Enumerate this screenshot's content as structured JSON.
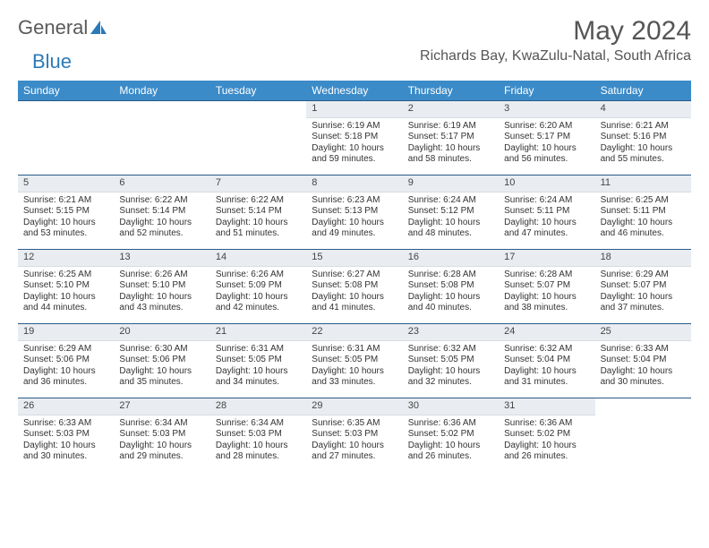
{
  "logo": {
    "text1": "General",
    "text2": "Blue"
  },
  "title": "May 2024",
  "location": "Richards Bay, KwaZulu-Natal, South Africa",
  "colors": {
    "header_bg": "#3b8bc9",
    "header_text": "#ffffff",
    "week_border": "#2a5a8a",
    "daynum_bg": "#e9edf1",
    "text": "#333333",
    "logo_gray": "#5a5a5a",
    "logo_blue": "#2a7ab9"
  },
  "day_names": [
    "Sunday",
    "Monday",
    "Tuesday",
    "Wednesday",
    "Thursday",
    "Friday",
    "Saturday"
  ],
  "weeks": [
    [
      {
        "n": "",
        "empty": true
      },
      {
        "n": "",
        "empty": true
      },
      {
        "n": "",
        "empty": true
      },
      {
        "n": "1",
        "sr": "6:19 AM",
        "ss": "5:18 PM",
        "dl": "10 hours and 59 minutes."
      },
      {
        "n": "2",
        "sr": "6:19 AM",
        "ss": "5:17 PM",
        "dl": "10 hours and 58 minutes."
      },
      {
        "n": "3",
        "sr": "6:20 AM",
        "ss": "5:17 PM",
        "dl": "10 hours and 56 minutes."
      },
      {
        "n": "4",
        "sr": "6:21 AM",
        "ss": "5:16 PM",
        "dl": "10 hours and 55 minutes."
      }
    ],
    [
      {
        "n": "5",
        "sr": "6:21 AM",
        "ss": "5:15 PM",
        "dl": "10 hours and 53 minutes."
      },
      {
        "n": "6",
        "sr": "6:22 AM",
        "ss": "5:14 PM",
        "dl": "10 hours and 52 minutes."
      },
      {
        "n": "7",
        "sr": "6:22 AM",
        "ss": "5:14 PM",
        "dl": "10 hours and 51 minutes."
      },
      {
        "n": "8",
        "sr": "6:23 AM",
        "ss": "5:13 PM",
        "dl": "10 hours and 49 minutes."
      },
      {
        "n": "9",
        "sr": "6:24 AM",
        "ss": "5:12 PM",
        "dl": "10 hours and 48 minutes."
      },
      {
        "n": "10",
        "sr": "6:24 AM",
        "ss": "5:11 PM",
        "dl": "10 hours and 47 minutes."
      },
      {
        "n": "11",
        "sr": "6:25 AM",
        "ss": "5:11 PM",
        "dl": "10 hours and 46 minutes."
      }
    ],
    [
      {
        "n": "12",
        "sr": "6:25 AM",
        "ss": "5:10 PM",
        "dl": "10 hours and 44 minutes."
      },
      {
        "n": "13",
        "sr": "6:26 AM",
        "ss": "5:10 PM",
        "dl": "10 hours and 43 minutes."
      },
      {
        "n": "14",
        "sr": "6:26 AM",
        "ss": "5:09 PM",
        "dl": "10 hours and 42 minutes."
      },
      {
        "n": "15",
        "sr": "6:27 AM",
        "ss": "5:08 PM",
        "dl": "10 hours and 41 minutes."
      },
      {
        "n": "16",
        "sr": "6:28 AM",
        "ss": "5:08 PM",
        "dl": "10 hours and 40 minutes."
      },
      {
        "n": "17",
        "sr": "6:28 AM",
        "ss": "5:07 PM",
        "dl": "10 hours and 38 minutes."
      },
      {
        "n": "18",
        "sr": "6:29 AM",
        "ss": "5:07 PM",
        "dl": "10 hours and 37 minutes."
      }
    ],
    [
      {
        "n": "19",
        "sr": "6:29 AM",
        "ss": "5:06 PM",
        "dl": "10 hours and 36 minutes."
      },
      {
        "n": "20",
        "sr": "6:30 AM",
        "ss": "5:06 PM",
        "dl": "10 hours and 35 minutes."
      },
      {
        "n": "21",
        "sr": "6:31 AM",
        "ss": "5:05 PM",
        "dl": "10 hours and 34 minutes."
      },
      {
        "n": "22",
        "sr": "6:31 AM",
        "ss": "5:05 PM",
        "dl": "10 hours and 33 minutes."
      },
      {
        "n": "23",
        "sr": "6:32 AM",
        "ss": "5:05 PM",
        "dl": "10 hours and 32 minutes."
      },
      {
        "n": "24",
        "sr": "6:32 AM",
        "ss": "5:04 PM",
        "dl": "10 hours and 31 minutes."
      },
      {
        "n": "25",
        "sr": "6:33 AM",
        "ss": "5:04 PM",
        "dl": "10 hours and 30 minutes."
      }
    ],
    [
      {
        "n": "26",
        "sr": "6:33 AM",
        "ss": "5:03 PM",
        "dl": "10 hours and 30 minutes."
      },
      {
        "n": "27",
        "sr": "6:34 AM",
        "ss": "5:03 PM",
        "dl": "10 hours and 29 minutes."
      },
      {
        "n": "28",
        "sr": "6:34 AM",
        "ss": "5:03 PM",
        "dl": "10 hours and 28 minutes."
      },
      {
        "n": "29",
        "sr": "6:35 AM",
        "ss": "5:03 PM",
        "dl": "10 hours and 27 minutes."
      },
      {
        "n": "30",
        "sr": "6:36 AM",
        "ss": "5:02 PM",
        "dl": "10 hours and 26 minutes."
      },
      {
        "n": "31",
        "sr": "6:36 AM",
        "ss": "5:02 PM",
        "dl": "10 hours and 26 minutes."
      },
      {
        "n": "",
        "empty": true
      }
    ]
  ],
  "labels": {
    "sunrise": "Sunrise:",
    "sunset": "Sunset:",
    "daylight": "Daylight:"
  }
}
